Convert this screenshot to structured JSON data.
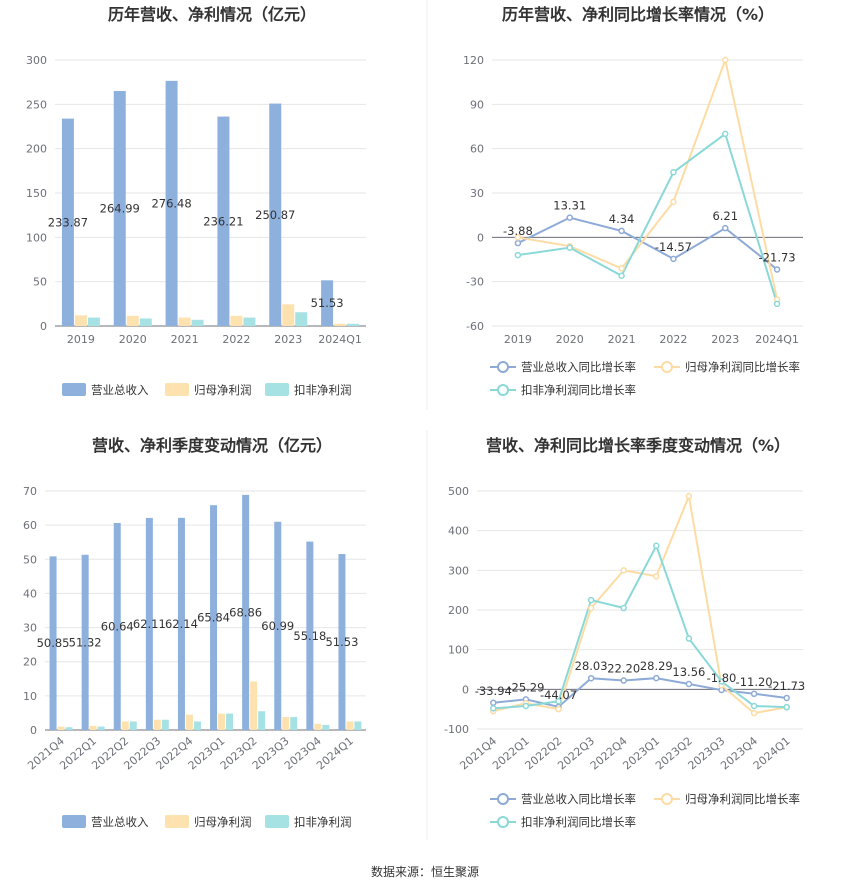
{
  "source": "数据来源：恒生聚源",
  "colors": {
    "revenue": "#8eb0dd",
    "net": "#fde2b0",
    "deducted": "#a6e1e4",
    "revenue_line": "#8eaad7",
    "net_line": "#fcdca4",
    "deducted_line": "#8ad8d8"
  },
  "chart_data": [
    {
      "type": "bar",
      "title": "历年营收、净利情况（亿元）",
      "categories": [
        "2019",
        "2020",
        "2021",
        "2022",
        "2023",
        "2024Q1"
      ],
      "ylim": [
        0,
        300
      ],
      "yticks": [
        "0",
        "50",
        "100",
        "150",
        "200",
        "250",
        "300"
      ],
      "legend_position": "bottom",
      "series": [
        {
          "name": "营业总收入",
          "values": [
            233.87,
            264.99,
            276.48,
            236.21,
            250.87,
            51.53
          ],
          "labels": [
            "233.87",
            "264.99",
            "276.48",
            "236.21",
            "250.87",
            "51.53"
          ]
        },
        {
          "name": "归母净利润",
          "values": [
            12,
            11.5,
            9.5,
            11.5,
            24.5,
            2.5
          ]
        },
        {
          "name": "扣非净利润",
          "values": [
            9.5,
            8.5,
            7,
            9.5,
            15.5,
            2.5
          ]
        }
      ]
    },
    {
      "type": "line",
      "title": "历年营收、净利同比增长率情况（%）",
      "categories": [
        "2019",
        "2020",
        "2021",
        "2022",
        "2023",
        "2024Q1"
      ],
      "ylim": [
        -60,
        120
      ],
      "yticks": [
        "-60",
        "-30",
        "0",
        "30",
        "60",
        "90",
        "120"
      ],
      "legend_position": "bottom",
      "series": [
        {
          "name": "营业总收入同比增长率",
          "values": [
            -3.88,
            13.31,
            4.34,
            -14.57,
            6.21,
            -21.73
          ],
          "labels": [
            "-3.88",
            "13.31",
            "4.34",
            "-14.57",
            "6.21",
            "-21.73"
          ]
        },
        {
          "name": "归母净利润同比增长率",
          "values": [
            0,
            -6,
            -21,
            24,
            120,
            -42
          ]
        },
        {
          "name": "扣非净利润同比增长率",
          "values": [
            -12,
            -7,
            -26,
            44,
            70,
            -45
          ]
        }
      ]
    },
    {
      "type": "bar",
      "title": "营收、净利季度变动情况（亿元）",
      "categories": [
        "2021Q4",
        "2022Q1",
        "2022Q2",
        "2022Q3",
        "2022Q4",
        "2023Q1",
        "2023Q2",
        "2023Q3",
        "2023Q4",
        "2024Q1"
      ],
      "ylim": [
        0,
        70
      ],
      "yticks": [
        "0",
        "10",
        "20",
        "30",
        "40",
        "50",
        "60",
        "70"
      ],
      "legend_position": "bottom",
      "series": [
        {
          "name": "营业总收入",
          "values": [
            50.85,
            51.32,
            60.64,
            62.11,
            62.14,
            65.84,
            68.86,
            60.99,
            55.18,
            51.53
          ],
          "labels": [
            "50.85",
            "51.32",
            "60.64",
            "62.11",
            "62.14",
            "65.84",
            "68.86",
            "60.99",
            "55.18",
            "51.53"
          ]
        },
        {
          "name": "归母净利润",
          "values": [
            1,
            1.2,
            2.5,
            3,
            4.5,
            4.8,
            14.2,
            3.8,
            1.8,
            2.5
          ]
        },
        {
          "name": "扣非净利润",
          "values": [
            0.8,
            1,
            2.5,
            3,
            2.5,
            4.8,
            5.5,
            3.8,
            1.5,
            2.5
          ]
        }
      ]
    },
    {
      "type": "line",
      "title": "营收、净利同比增长率季度变动情况（%）",
      "categories": [
        "2021Q4",
        "2022Q1",
        "2022Q2",
        "2022Q3",
        "2022Q4",
        "2023Q1",
        "2023Q2",
        "2023Q3",
        "2023Q4",
        "2024Q1"
      ],
      "ylim": [
        -100,
        500
      ],
      "yticks": [
        "-100",
        "0",
        "100",
        "200",
        "300",
        "400",
        "500"
      ],
      "legend_position": "bottom",
      "series": [
        {
          "name": "营业总收入同比增长率",
          "values": [
            -33.94,
            -25.29,
            -44.07,
            28.03,
            22.2,
            28.29,
            13.56,
            -1.8,
            -11.2,
            -21.73
          ],
          "labels": [
            "-33.94",
            "-25.29",
            "-44.07",
            "28.03",
            "22.20",
            "28.29",
            "13.56",
            "-1.80",
            "-11.20",
            "-21.73"
          ]
        },
        {
          "name": "归母净利润同比增长率",
          "values": [
            -55,
            -35,
            -50,
            205,
            300,
            285,
            487,
            10,
            -60,
            -45
          ]
        },
        {
          "name": "扣非净利润同比增长率",
          "values": [
            -48,
            -42,
            -30,
            225,
            205,
            362,
            128,
            20,
            -42,
            -45
          ]
        }
      ]
    }
  ]
}
